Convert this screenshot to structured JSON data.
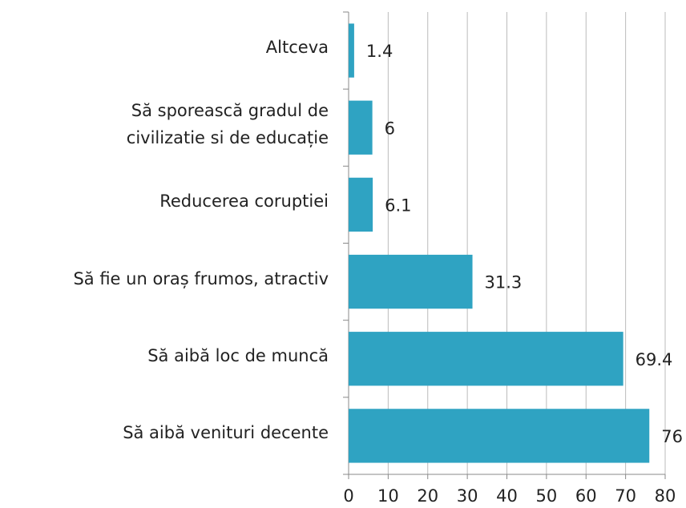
{
  "chart_data": {
    "type": "bar",
    "orientation": "horizontal",
    "categories": [
      "Altceva",
      "Să sporească gradul de civilizatie si de educație",
      "Reducerea coruptiei",
      "Să fie un oraș frumos, atractiv",
      "Să aibă loc de muncă",
      "Să aibă venituri decente"
    ],
    "values": [
      1.4,
      6,
      6.1,
      31.3,
      69.4,
      76
    ],
    "color": "#2fa3c2",
    "xlim": [
      0,
      80
    ],
    "xticks": [
      0,
      10,
      20,
      30,
      40,
      50,
      60,
      70,
      80
    ],
    "grid": true
  }
}
